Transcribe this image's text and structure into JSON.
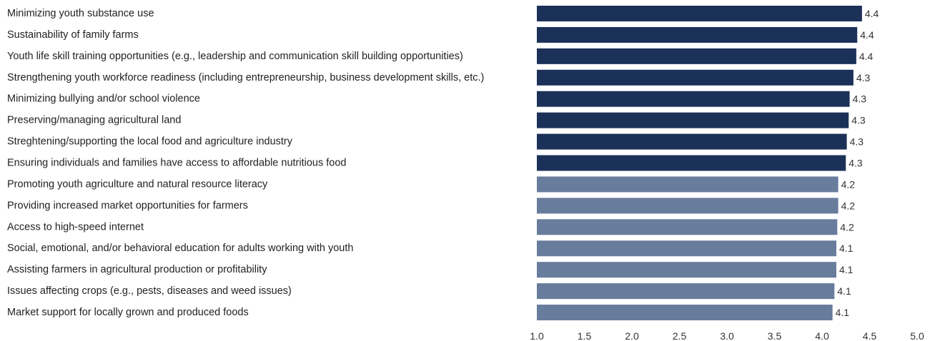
{
  "chart_data": {
    "type": "bar",
    "orientation": "horizontal",
    "title": "",
    "xlabel": "",
    "ylabel": "",
    "xlim": [
      1.0,
      5.0
    ],
    "x_ticks": [
      "1.0",
      "1.5",
      "2.0",
      "2.5",
      "3.0",
      "3.5",
      "4.0",
      "4.5",
      "5.0"
    ],
    "grid": false,
    "legend": "none",
    "colors": {
      "high": "#1c3158",
      "low": "#687c9c"
    },
    "categories": [
      "Minimizing youth substance use",
      "Sustainability of family farms",
      "Youth life skill training opportunities (e.g., leadership and communication skill building opportunities)",
      "Strengthening youth workforce readiness (including entrepreneurship, business development skills, etc.)",
      "Minimizing bullying and/or school violence",
      "Preserving/managing agricultural land",
      "Streghtening/supporting the local food and agriculture industry",
      "Ensuring individuals and families have access to affordable nutritious food",
      "Promoting youth agriculture and natural resource literacy",
      "Providing increased market opportunities for farmers",
      "Access to high-speed internet",
      "Social, emotional, and/or behavioral education for adults working with youth",
      "Assisting farmers in agricultural production or profitability",
      "Issues affecting crops (e.g., pests, diseases and weed issues)",
      "Market support for locally grown and produced foods"
    ],
    "values": [
      4.42,
      4.37,
      4.36,
      4.33,
      4.29,
      4.28,
      4.26,
      4.25,
      4.17,
      4.17,
      4.16,
      4.15,
      4.15,
      4.13,
      4.11
    ],
    "value_labels": [
      "4.4",
      "4.4",
      "4.4",
      "4.3",
      "4.3",
      "4.3",
      "4.3",
      "4.3",
      "4.2",
      "4.2",
      "4.2",
      "4.1",
      "4.1",
      "4.1",
      "4.1"
    ],
    "bar_color_keys": [
      "high",
      "high",
      "high",
      "high",
      "high",
      "high",
      "high",
      "high",
      "low",
      "low",
      "low",
      "low",
      "low",
      "low",
      "low"
    ]
  }
}
